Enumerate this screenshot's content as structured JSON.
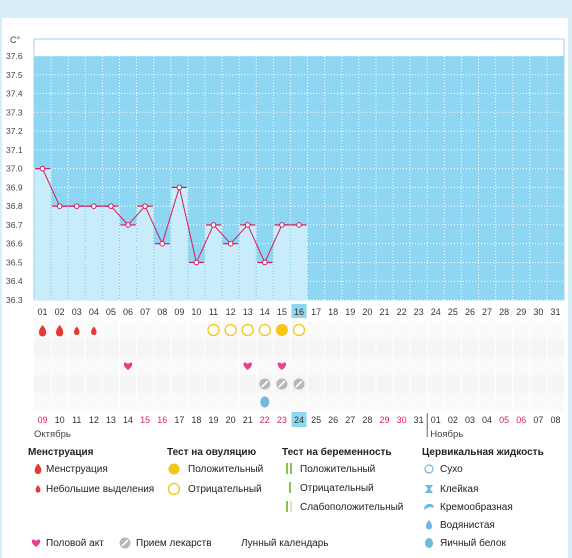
{
  "chart_data": {
    "type": "line",
    "yunit": "C°",
    "yticks": [
      "37.6",
      "37.5",
      "37.4",
      "37.3",
      "37.2",
      "37.1",
      "37.0",
      "36.9",
      "36.8",
      "36.7",
      "36.6",
      "36.5",
      "36.4",
      "36.3"
    ],
    "ylim": [
      36.3,
      37.6
    ],
    "days": [
      "01",
      "02",
      "03",
      "04",
      "05",
      "06",
      "07",
      "08",
      "09",
      "10",
      "11",
      "12",
      "13",
      "14",
      "15",
      "16",
      "17",
      "18",
      "19",
      "20",
      "21",
      "22",
      "23",
      "24",
      "25",
      "26",
      "27",
      "28",
      "29",
      "30",
      "31"
    ],
    "temperatures": [
      37.0,
      36.8,
      36.8,
      36.8,
      36.8,
      36.7,
      36.8,
      36.6,
      36.9,
      36.5,
      36.7,
      36.6,
      36.7,
      36.5,
      36.7,
      36.7
    ],
    "current_day_index": 15,
    "dates": [
      "09",
      "10",
      "11",
      "12",
      "13",
      "14",
      "15",
      "16",
      "17",
      "18",
      "19",
      "20",
      "21",
      "22",
      "23",
      "24",
      "25",
      "26",
      "27",
      "28",
      "29",
      "30",
      "31",
      "01",
      "02",
      "03",
      "04",
      "05",
      "06",
      "07",
      "08"
    ],
    "date_colors": [
      "red",
      "black",
      "black",
      "black",
      "black",
      "black",
      "red",
      "red",
      "black",
      "black",
      "black",
      "black",
      "black",
      "red",
      "red",
      "black",
      "black",
      "black",
      "black",
      "black",
      "red",
      "red",
      "black",
      "black",
      "black",
      "black",
      "black",
      "red",
      "red",
      "black",
      "black"
    ],
    "months": {
      "first": "Октябрь",
      "second": "Ноябрь"
    },
    "menstruation": [
      2,
      2,
      1,
      1,
      0,
      0,
      0,
      0,
      0,
      0,
      0,
      0,
      0,
      0,
      0,
      0
    ],
    "ovulation_tests": [
      0,
      0,
      0,
      0,
      0,
      0,
      0,
      0,
      0,
      0,
      1,
      1,
      1,
      1,
      2,
      1
    ],
    "intercourse": [
      0,
      0,
      0,
      0,
      0,
      1,
      0,
      0,
      0,
      0,
      0,
      0,
      1,
      0,
      1,
      0
    ],
    "medication": [
      0,
      0,
      0,
      0,
      0,
      0,
      0,
      0,
      0,
      0,
      0,
      0,
      0,
      1,
      1,
      1
    ],
    "cervical_fluid": [
      0,
      0,
      0,
      0,
      0,
      0,
      0,
      0,
      0,
      0,
      0,
      0,
      0,
      4,
      0,
      0
    ]
  },
  "legend": {
    "menstruation": {
      "title": "Менструация",
      "items": [
        "Менструация",
        "Небольшие выделения"
      ]
    },
    "ovulation": {
      "title": "Тест на овуляцию",
      "items": [
        "Положительный",
        "Отрицательный"
      ]
    },
    "pregnancy": {
      "title": "Тест на беременность",
      "items": [
        "Положительный",
        "Отрицательный",
        "Слабоположительный"
      ]
    },
    "fluid": {
      "title": "Цервикальная жидкость",
      "items": [
        "Сухо",
        "Клейкая",
        "Кремообразная",
        "Водянистая",
        "Яичный белок"
      ]
    },
    "bottom": [
      "Половой акт",
      "Прием лекарств",
      "Лунный календарь"
    ]
  },
  "colors": {
    "fill": "#8ed6f2",
    "bar": "#c9ecfa",
    "line": "#d81b60",
    "heart": "#e8408f",
    "drop": "#e53935",
    "ovu": "#f5c518",
    "preg": "#8bc34a",
    "pill": "#b8b8b8",
    "moon": "#f39c12",
    "fluid": "#6fb8e0"
  }
}
